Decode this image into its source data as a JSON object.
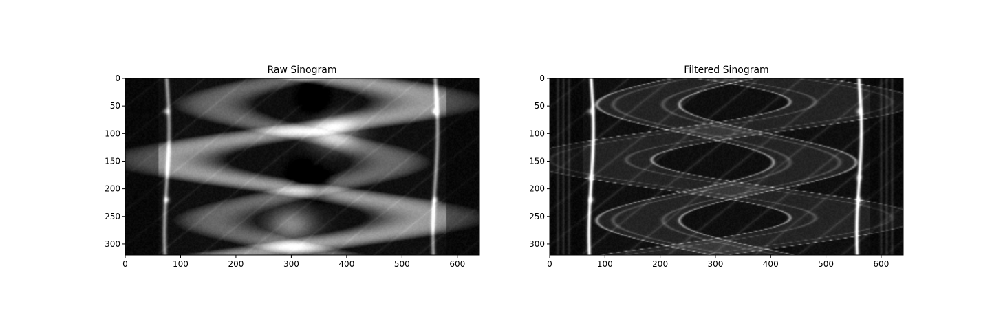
{
  "colors": {
    "background": "#ffffff",
    "axes": "#000000",
    "colormap": "gray"
  },
  "chart_data": [
    {
      "type": "heatmap",
      "title": "Raw Sinogram",
      "xlabel": "",
      "ylabel": "",
      "xlim": [
        0,
        640
      ],
      "ylim": [
        320,
        0
      ],
      "xticks": [
        0,
        100,
        200,
        300,
        400,
        500,
        600
      ],
      "yticks": [
        0,
        50,
        100,
        150,
        200,
        250,
        300
      ],
      "image": {
        "rows": 320,
        "cols": 640,
        "colormap": "gray",
        "features": {
          "outer_bands": {
            "x": [
              75,
              560
            ],
            "intensity": 0.55
          },
          "band_bright_spots_y": [
            60,
            220
          ],
          "bright_blobs": [
            {
              "x": 380,
              "y": 100,
              "intensity": 1.0
            },
            {
              "x": 300,
              "y": 265,
              "intensity": 0.95
            }
          ],
          "dark_lobes": [
            {
              "x": 340,
              "y": 35
            },
            {
              "x": 320,
              "y": 175
            },
            {
              "x": 350,
              "y": 195
            }
          ],
          "sinusoids": [
            {
              "center": 310,
              "amplitude": 240,
              "period": 210,
              "phase": 0.3,
              "width": 115
            },
            {
              "center": 320,
              "amplitude": 160,
              "period": 210,
              "phase": 3.3,
              "width": 75
            }
          ]
        }
      }
    },
    {
      "type": "heatmap",
      "title": "Filtered Sinogram",
      "xlabel": "",
      "ylabel": "",
      "xlim": [
        0,
        640
      ],
      "ylim": [
        320,
        0
      ],
      "xticks": [
        0,
        100,
        200,
        300,
        400,
        500,
        600
      ],
      "yticks": [
        0,
        50,
        100,
        150,
        200,
        250,
        300
      ],
      "image": {
        "rows": 320,
        "cols": 640,
        "colormap": "gray",
        "features": {
          "outer_bands": {
            "x": [
              75,
              560
            ],
            "intensity": 1.0
          },
          "band_bright_spots_y": [
            60,
            180,
            220
          ],
          "edge_stripes_x": [
            15,
            25,
            35,
            600,
            610,
            620
          ],
          "sinusoids": [
            {
              "center": 310,
              "amplitude": 240,
              "period": 210,
              "phase": 0.3,
              "width": 115
            },
            {
              "center": 320,
              "amplitude": 160,
              "period": 210,
              "phase": 3.3,
              "width": 75
            }
          ]
        }
      }
    }
  ]
}
